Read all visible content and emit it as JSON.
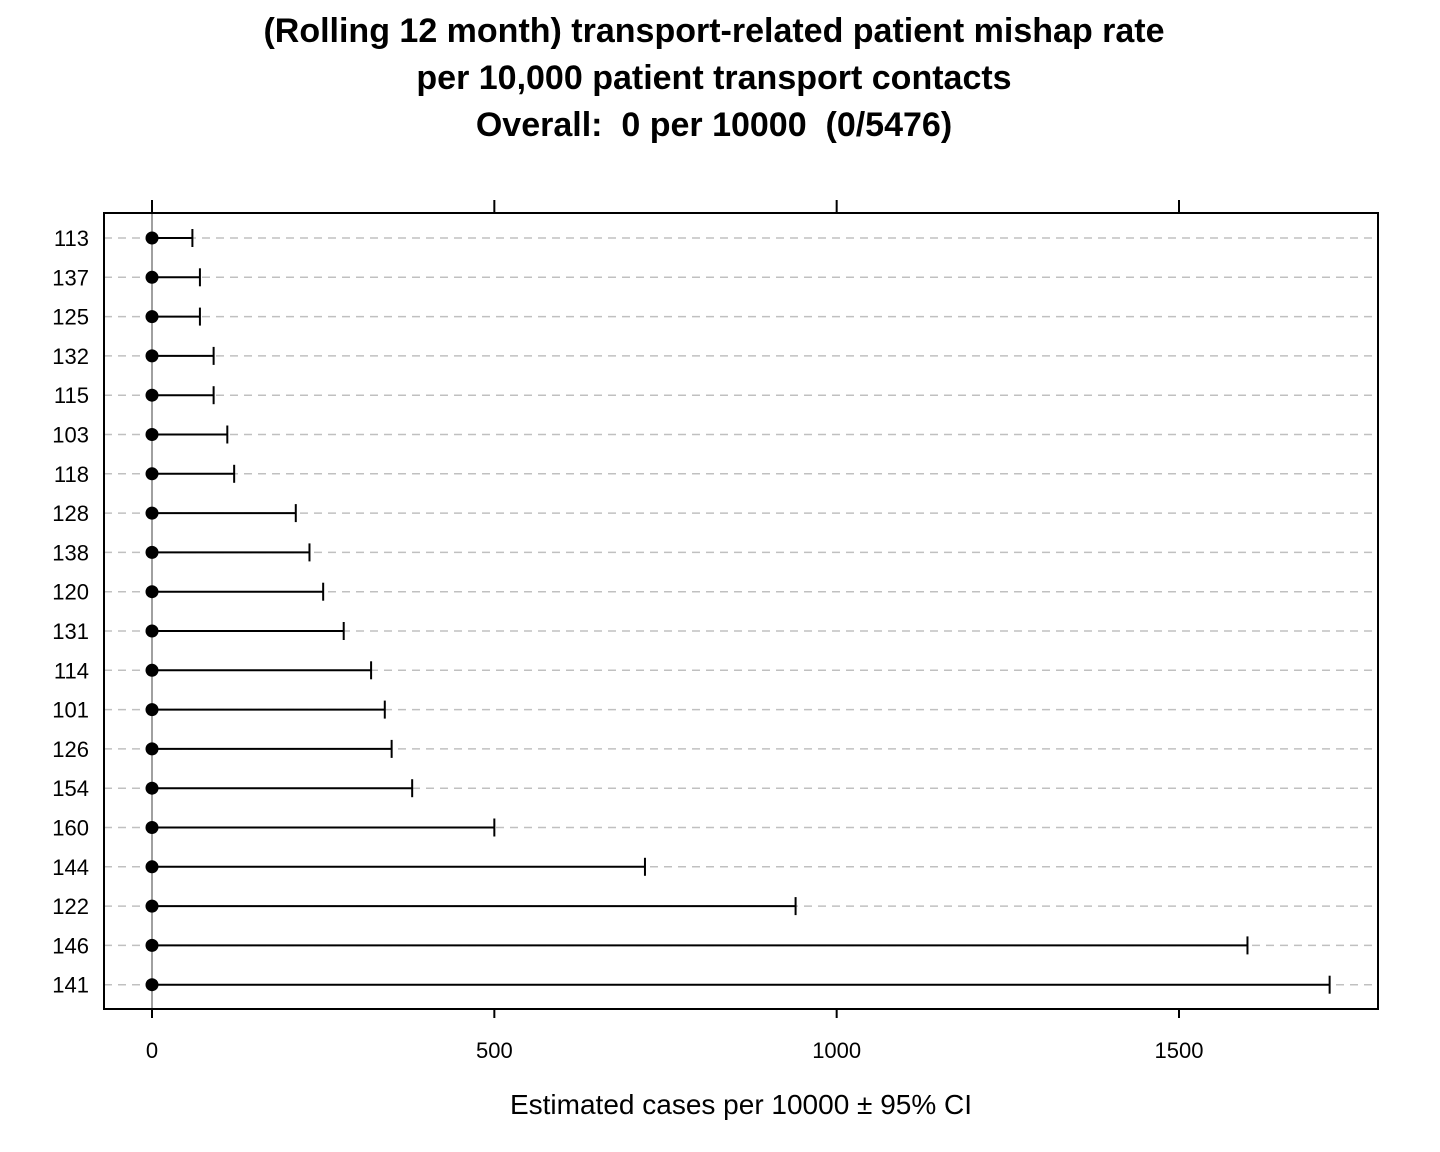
{
  "title_lines": [
    "(Rolling 12 month) transport-related patient mishap rate",
    "per 10,000 patient transport contacts",
    "Overall:  0 per 10000  (0/5476)"
  ],
  "colors": {
    "marker": "#000000",
    "error_bar": "#000000",
    "grid": "#c0c0c0",
    "zero_line": "#a0a0a0",
    "frame": "#000000"
  },
  "chart_data": {
    "type": "scatter",
    "subtype": "dot-plot-with-error-bars",
    "orientation": "horizontal",
    "title": "(Rolling 12 month) transport-related patient mishap rate per 10,000 patient transport contacts",
    "subtitle": "Overall:  0 per 10000  (0/5476)",
    "xlabel": "Estimated cases per 10000 ±  95% CI",
    "ylabel": "",
    "xlim": [
      -70,
      1800
    ],
    "xticks": [
      0,
      500,
      1000,
      1500
    ],
    "xtick_labels": [
      "0",
      "500",
      "1000",
      "1500"
    ],
    "top_axis_ticks": true,
    "grid": "horizontal dashed lines",
    "series": [
      {
        "categories": [
          "113",
          "137",
          "125",
          "132",
          "115",
          "103",
          "118",
          "128",
          "138",
          "120",
          "131",
          "114",
          "101",
          "126",
          "154",
          "160",
          "144",
          "122",
          "146",
          "141"
        ],
        "values": [
          0,
          0,
          0,
          0,
          0,
          0,
          0,
          0,
          0,
          0,
          0,
          0,
          0,
          0,
          0,
          0,
          0,
          0,
          0,
          0
        ],
        "ci_lower": [
          0,
          0,
          0,
          0,
          0,
          0,
          0,
          0,
          0,
          0,
          0,
          0,
          0,
          0,
          0,
          0,
          0,
          0,
          0,
          0
        ],
        "ci_upper": [
          59,
          70,
          70,
          90,
          90,
          110,
          120,
          210,
          230,
          250,
          280,
          320,
          340,
          350,
          380,
          500,
          720,
          940,
          1600,
          1720
        ]
      }
    ]
  }
}
